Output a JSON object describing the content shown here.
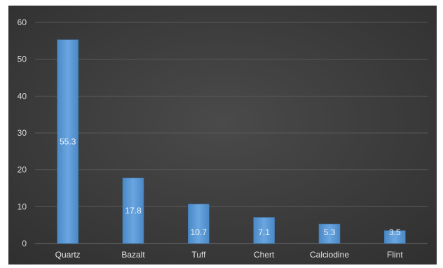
{
  "chart_data": {
    "type": "bar",
    "title": "",
    "xlabel": "",
    "ylabel": "",
    "categories": [
      "Quartz",
      "Bazalt",
      "Tuff",
      "Chert",
      "Calciodine",
      "Flint"
    ],
    "values": [
      55.3,
      17.8,
      10.7,
      7.1,
      5.3,
      3.5
    ],
    "data_labels": [
      "55.3",
      "17.8",
      "10.7",
      "7.1",
      "5.3",
      "3.5"
    ],
    "yticks": [
      0,
      10,
      20,
      30,
      40,
      50,
      60
    ],
    "ytick_labels": [
      "0",
      "10",
      "20",
      "30",
      "40",
      "50",
      "60"
    ],
    "ylim": [
      0,
      60
    ],
    "grid": true,
    "legend": "none",
    "colors": {
      "background": "#404040",
      "bar": "#5b9bd5",
      "bar_highlight": "#7fb4e6",
      "grid": "#595959",
      "text": "#d9d9d9"
    }
  }
}
